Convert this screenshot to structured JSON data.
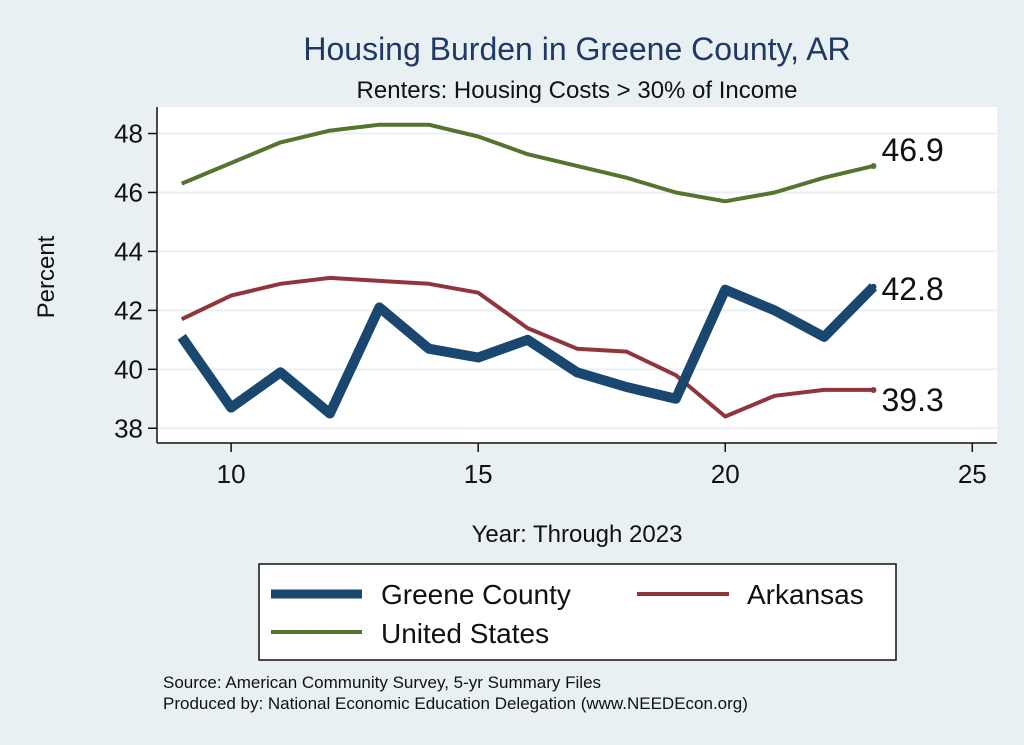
{
  "chart_data": {
    "type": "line",
    "title": "Housing Burden in Greene County, AR",
    "subtitle": "Renters: Housing Costs > 30% of Income",
    "xlabel": "Year: Through 2023",
    "ylabel": "Percent",
    "xlim": [
      8.5,
      25.5
    ],
    "ylim": [
      37.5,
      48.9
    ],
    "xticks": [
      10,
      15,
      20,
      25
    ],
    "yticks": [
      38,
      40,
      42,
      44,
      46,
      48
    ],
    "grid": true,
    "legend_position": "bottom",
    "x": [
      9,
      10,
      11,
      12,
      13,
      14,
      15,
      16,
      17,
      18,
      19,
      20,
      21,
      22,
      23
    ],
    "series": [
      {
        "name": "Greene County",
        "color": "#1a476f",
        "values": [
          41.1,
          38.7,
          39.9,
          38.5,
          42.1,
          40.7,
          40.4,
          41.0,
          39.9,
          39.4,
          39.0,
          42.7,
          42.0,
          41.1,
          42.8
        ],
        "end_label": "42.8"
      },
      {
        "name": "Arkansas",
        "color": "#90353b",
        "values": [
          41.7,
          42.5,
          42.9,
          43.1,
          43.0,
          42.9,
          42.6,
          41.4,
          40.7,
          40.6,
          39.8,
          38.4,
          39.1,
          39.3,
          39.3
        ],
        "end_label": "39.3"
      },
      {
        "name": "United States",
        "color": "#55752f",
        "values": [
          46.3,
          47.0,
          47.7,
          48.1,
          48.3,
          48.3,
          47.9,
          47.3,
          46.9,
          46.5,
          46.0,
          45.7,
          46.0,
          46.5,
          46.9
        ],
        "end_label": "46.9"
      }
    ]
  },
  "footer": {
    "source": "Source: American Community Survey, 5-yr Summary Files",
    "produced_by": "Produced by: National Economic Education Delegation (www.NEEDEcon.org)"
  }
}
